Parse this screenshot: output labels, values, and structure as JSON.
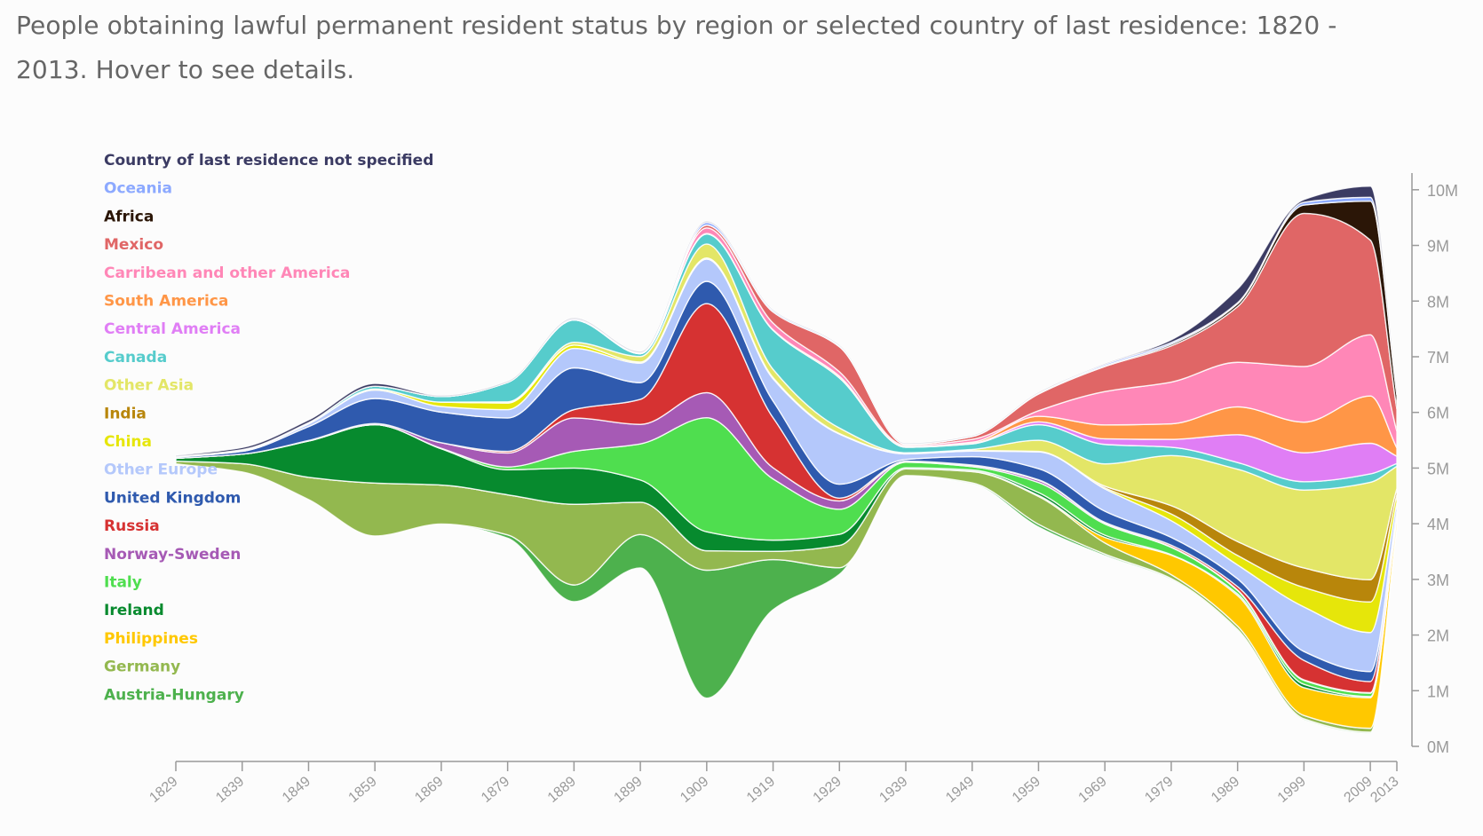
{
  "title": "People obtaining lawful permanent resident status by region or selected country of last residence: 1820 - 2013. Hover to see details.",
  "chart_data": {
    "type": "area",
    "subtype": "streamgraph",
    "x": [
      1829,
      1839,
      1849,
      1859,
      1869,
      1879,
      1889,
      1899,
      1909,
      1919,
      1929,
      1939,
      1949,
      1959,
      1969,
      1979,
      1989,
      1999,
      2009,
      2013
    ],
    "x_ticks": [
      "1829",
      "1839",
      "1849",
      "1859",
      "1869",
      "1879",
      "1889",
      "1899",
      "1909",
      "1919",
      "1929",
      "1939",
      "1949",
      "1959",
      "1969",
      "1979",
      "1989",
      "1999",
      "2009",
      "2013"
    ],
    "y_ticks": [
      "0M",
      "1M",
      "2M",
      "3M",
      "4M",
      "5M",
      "6M",
      "7M",
      "8M",
      "9M",
      "10M"
    ],
    "y_range": [
      0,
      10.3
    ],
    "y_unit": "M",
    "legend_position": "top-left",
    "series": [
      {
        "name": "Austria-Hungary",
        "color": "#4db14d",
        "values": [
          0,
          0,
          0,
          0,
          0,
          0.06,
          0.3,
          0.6,
          2.3,
          0.9,
          0.12,
          0.01,
          0.02,
          0.05,
          0.03,
          0.02,
          0.02,
          0.02,
          0.02,
          0.01
        ]
      },
      {
        "name": "Germany",
        "color": "#93b84f",
        "values": [
          0.05,
          0.15,
          0.4,
          0.95,
          0.7,
          0.72,
          1.45,
          0.58,
          0.35,
          0.15,
          0.4,
          0.12,
          0.2,
          0.5,
          0.2,
          0.07,
          0.06,
          0.06,
          0.07,
          0.03
        ]
      },
      {
        "name": "Philippines",
        "color": "#ffc800",
        "values": [
          0,
          0,
          0,
          0,
          0,
          0,
          0,
          0,
          0,
          0,
          0,
          0,
          0.01,
          0.02,
          0.1,
          0.35,
          0.55,
          0.5,
          0.55,
          0.15
        ]
      },
      {
        "name": "Ireland",
        "color": "#078a2e",
        "values": [
          0.05,
          0.17,
          0.65,
          1.05,
          0.65,
          0.45,
          0.65,
          0.4,
          0.34,
          0.2,
          0.2,
          0.02,
          0.02,
          0.05,
          0.04,
          0.01,
          0.03,
          0.06,
          0.02,
          0.01
        ]
      },
      {
        "name": "Italy",
        "color": "#4fde4f",
        "values": [
          0,
          0,
          0,
          0,
          0.01,
          0.05,
          0.3,
          0.65,
          2.05,
          1.1,
          0.45,
          0.1,
          0.06,
          0.18,
          0.2,
          0.13,
          0.06,
          0.07,
          0.06,
          0.02
        ]
      },
      {
        "name": "Norway-Sweden",
        "color": "#a65ab5",
        "values": [
          0,
          0,
          0.01,
          0.02,
          0.1,
          0.25,
          0.6,
          0.35,
          0.45,
          0.2,
          0.15,
          0.01,
          0.02,
          0.04,
          0.02,
          0.01,
          0.01,
          0.01,
          0.01,
          0.005
        ]
      },
      {
        "name": "Russia",
        "color": "#d63232",
        "values": [
          0,
          0,
          0,
          0,
          0,
          0.03,
          0.15,
          0.45,
          1.6,
          0.9,
          0.05,
          0.01,
          0.01,
          0.01,
          0.01,
          0.03,
          0.06,
          0.35,
          0.2,
          0.04
        ]
      },
      {
        "name": "United Kingdom",
        "color": "#2f5aae",
        "values": [
          0.02,
          0.05,
          0.25,
          0.45,
          0.55,
          0.6,
          0.75,
          0.3,
          0.4,
          0.3,
          0.25,
          0.03,
          0.15,
          0.2,
          0.2,
          0.14,
          0.14,
          0.16,
          0.18,
          0.05
        ]
      },
      {
        "name": "Other Europe",
        "color": "#b4c8fb",
        "values": [
          0.01,
          0.02,
          0.05,
          0.15,
          0.1,
          0.15,
          0.35,
          0.35,
          0.4,
          0.4,
          0.9,
          0.1,
          0.1,
          0.3,
          0.4,
          0.3,
          0.25,
          0.8,
          0.7,
          0.15
        ]
      },
      {
        "name": "China",
        "color": "#e6e60a",
        "values": [
          0,
          0,
          0,
          0.02,
          0.08,
          0.12,
          0.06,
          0.02,
          0.02,
          0.02,
          0.01,
          0.01,
          0.01,
          0.01,
          0.02,
          0.12,
          0.17,
          0.35,
          0.55,
          0.15
        ]
      },
      {
        "name": "India",
        "color": "#b8860b",
        "values": [
          0,
          0,
          0,
          0,
          0,
          0,
          0,
          0,
          0,
          0,
          0,
          0,
          0,
          0,
          0.03,
          0.15,
          0.25,
          0.35,
          0.4,
          0.1
        ]
      },
      {
        "name": "Other Asia",
        "color": "#e3e667",
        "values": [
          0,
          0,
          0,
          0,
          0,
          0.02,
          0.05,
          0.1,
          0.25,
          0.15,
          0.1,
          0.01,
          0.02,
          0.2,
          0.4,
          0.9,
          1.3,
          1.4,
          1.75,
          0.4
        ]
      },
      {
        "name": "Canada",
        "color": "#56cccc",
        "values": [
          0,
          0.01,
          0.02,
          0.05,
          0.1,
          0.35,
          0.4,
          0.05,
          0.18,
          0.7,
          0.9,
          0.1,
          0.1,
          0.28,
          0.35,
          0.15,
          0.12,
          0.15,
          0.15,
          0.05
        ]
      },
      {
        "name": "Central America",
        "color": "#e07ef5",
        "values": [
          0,
          0,
          0,
          0,
          0,
          0,
          0,
          0,
          0,
          0,
          0,
          0,
          0.01,
          0.05,
          0.1,
          0.14,
          0.5,
          0.52,
          0.55,
          0.13
        ]
      },
      {
        "name": "South America",
        "color": "#ff9647",
        "values": [
          0,
          0,
          0,
          0,
          0,
          0,
          0,
          0,
          0.01,
          0.01,
          0.03,
          0.01,
          0.02,
          0.1,
          0.25,
          0.28,
          0.5,
          0.55,
          0.85,
          0.15
        ]
      },
      {
        "name": "Carribean and other America",
        "color": "#ff87b7",
        "values": [
          0,
          0,
          0,
          0,
          0,
          0,
          0,
          0.01,
          0.1,
          0.12,
          0.08,
          0.02,
          0.05,
          0.1,
          0.6,
          0.75,
          0.8,
          1.0,
          1.1,
          0.3
        ]
      },
      {
        "name": "Mexico",
        "color": "#e06666",
        "values": [
          0,
          0,
          0,
          0,
          0,
          0,
          0,
          0,
          0.05,
          0.2,
          0.45,
          0.02,
          0.05,
          0.3,
          0.45,
          0.65,
          1.0,
          2.75,
          1.7,
          0.4
        ]
      },
      {
        "name": "Africa",
        "color": "#2b1607",
        "values": [
          0,
          0,
          0,
          0,
          0,
          0,
          0,
          0,
          0,
          0,
          0,
          0,
          0,
          0.01,
          0.01,
          0.03,
          0.05,
          0.15,
          0.7,
          0.25
        ]
      },
      {
        "name": "Oceania",
        "color": "#8ca9ff",
        "values": [
          0,
          0,
          0,
          0,
          0,
          0,
          0.02,
          0.01,
          0.05,
          0.03,
          0.02,
          0.01,
          0.01,
          0.01,
          0.03,
          0.03,
          0.02,
          0.05,
          0.07,
          0.02
        ]
      },
      {
        "name": "Country of last residence not specified",
        "color": "#3b3b63",
        "values": [
          0.02,
          0.04,
          0.05,
          0.05,
          0.02,
          0.02,
          0.02,
          0.02,
          0.02,
          0.01,
          0.01,
          0.01,
          0.01,
          0.01,
          0.01,
          0.05,
          0.25,
          0.05,
          0.2,
          0.05
        ]
      }
    ]
  }
}
